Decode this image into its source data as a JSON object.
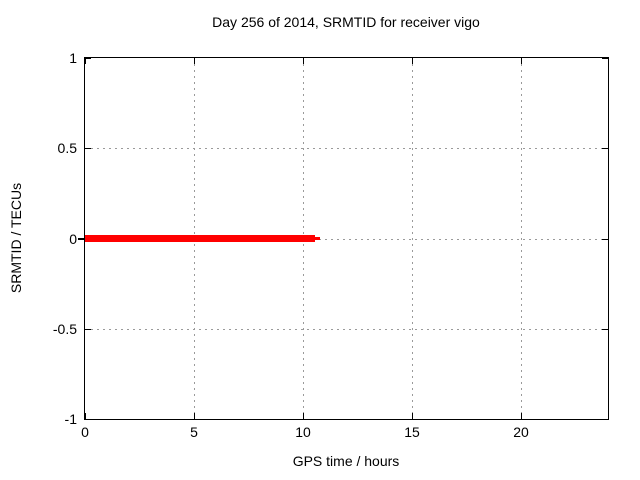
{
  "chart": {
    "title": "Day 256 of 2014, SRMTID for receiver vigo",
    "xlabel": "GPS time / hours",
    "ylabel": "SRMTID / TECUs"
  },
  "chart_data": {
    "type": "line",
    "title": "Day 256 of 2014, SRMTID for receiver vigo",
    "xlabel": "GPS time / hours",
    "ylabel": "SRMTID / TECUs",
    "xlim": [
      0,
      24
    ],
    "ylim": [
      -1,
      1
    ],
    "xticks": [
      0,
      5,
      10,
      15,
      20
    ],
    "xtick_labels": [
      "0",
      "5",
      "10",
      "15",
      "20"
    ],
    "yticks": [
      -1,
      -0.5,
      0,
      0.5,
      1
    ],
    "ytick_labels": [
      "-1",
      "-0.5",
      "0",
      "0.5",
      "1"
    ],
    "grid": true,
    "legend": "none",
    "colors": {
      "series": "#ff0000",
      "grid": "#9a9a9a",
      "border": "#000000",
      "background": "#ffffff",
      "text": "#000000"
    },
    "series": [
      {
        "name": "SRMTID",
        "color": "#ff0000",
        "y_value": 0,
        "segments": [
          {
            "x0": 0,
            "x1": 10.55,
            "y": 0,
            "thickness_px": 7
          },
          {
            "x0": 10.55,
            "x1": 10.8,
            "y": 0,
            "thickness_px": 3
          }
        ]
      }
    ]
  }
}
